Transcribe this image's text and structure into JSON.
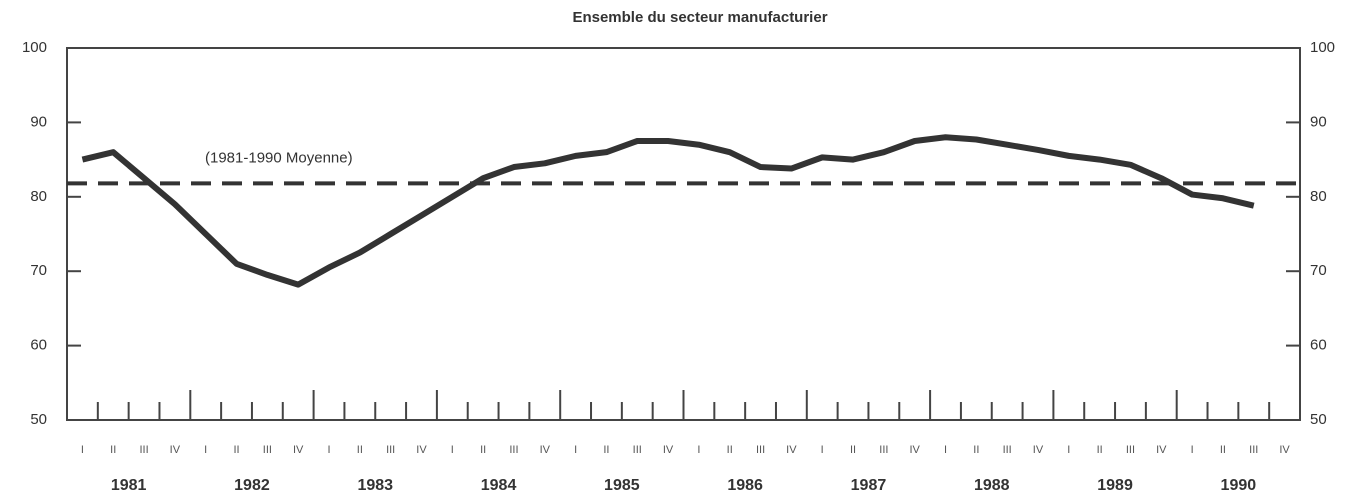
{
  "chart_data": {
    "type": "line",
    "title": "Ensemble du secteur manufacturier",
    "categories": [
      "I",
      "II",
      "III",
      "IV",
      "I",
      "II",
      "III",
      "IV",
      "I",
      "II",
      "III",
      "IV",
      "I",
      "II",
      "III",
      "IV",
      "I",
      "II",
      "III",
      "IV",
      "I",
      "II",
      "III",
      "IV",
      "I",
      "II",
      "III",
      "IV",
      "I",
      "II",
      "III",
      "IV",
      "I",
      "II",
      "III",
      "IV",
      "I",
      "II",
      "III",
      "IV"
    ],
    "years": [
      "1981",
      "1982",
      "1983",
      "1984",
      "1985",
      "1986",
      "1987",
      "1988",
      "1989",
      "1990"
    ],
    "series": [
      {
        "name": "Ensemble du secteur manufacturier",
        "color": "#333333",
        "values": [
          85,
          86,
          82.5,
          79,
          75,
          71,
          69.5,
          68.2,
          70.5,
          72.5,
          75,
          77.5,
          80,
          82.5,
          84,
          84.5,
          85.5,
          86,
          87.5,
          87.5,
          87,
          86,
          84,
          83.8,
          85.3,
          85,
          86,
          87.5,
          88,
          87.7,
          87,
          86.3,
          85.5,
          85,
          84.3,
          82.5,
          80.3,
          79.8,
          78.8,
          null
        ]
      }
    ],
    "average": {
      "label": "(1981-1990 Moyenne)",
      "value": 81.8
    },
    "ylim": [
      50,
      100
    ],
    "yticks": [
      50,
      60,
      70,
      80,
      90,
      100
    ],
    "y2lim": [
      50,
      100
    ],
    "y2ticks": [
      50,
      60,
      70,
      80,
      90,
      100
    ]
  }
}
